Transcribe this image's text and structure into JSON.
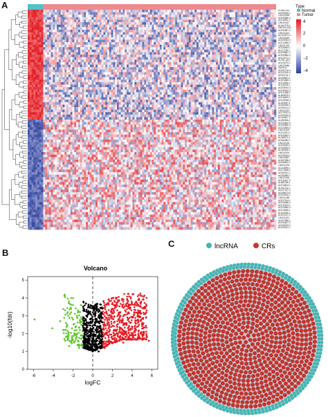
{
  "panels": {
    "a": "A",
    "b": "B",
    "c": "C"
  },
  "heatmap": {
    "type_title": "Type",
    "type_legend": [
      "Normal",
      "Tumor"
    ],
    "color_ticks": [
      "4",
      "2",
      "0",
      "−2",
      "−4"
    ],
    "colors": {
      "normal": "#4ec3c8",
      "tumor": "#ef8a8f",
      "high": "#e31b23",
      "mid": "#ffffff",
      "low": "#2c3e9e"
    },
    "gene_labels": [
      "RGMB-AS1",
      "AC005009.1",
      "LINC00958",
      "AC092580.4",
      "AC018511.1",
      "LINC00467",
      "AL161729.4",
      "ZNF503-AS2",
      "AC090587.2",
      "LINC01614",
      "AC104971.2",
      "LINC00462",
      "AC009053.3",
      "AC010969.2",
      "LINC01234",
      "AC026464.1",
      "AL117190.1",
      "AC008687.4",
      "AC099850.3",
      "AC015712.2",
      "ELFN1-AS1",
      "AC024075.1",
      "LINC02086",
      "SNHG12",
      "AC092718.4",
      "AC022150.4",
      "AP001011.1",
      "AC068631.1",
      "AC004846.1",
      "AC012640.1",
      "AL133245.1",
      "AC005034.3",
      "AC040162.3",
      "AC012368.1",
      "AL645929.1",
      "AC018529.1",
      "AC025048.4",
      "AL031667.3",
      "AC069360.1",
      "AC090114.2",
      "LINC01133",
      "AC079781.5",
      "AC005332.6",
      "AC116407.2",
      "AL450384.2",
      "AC010542.5",
      "AC099850.4",
      "AC023509.3",
      "LINC01503",
      "AC010201.1",
      "AC093642.1",
      "AL355574.1",
      "AC084082.1",
      "LINC02418",
      "AC009084.1",
      "AC005943.1",
      "AL049555.1",
      "LINC00324",
      "AC025164.1",
      "LINC00887",
      "AC087286.2",
      "AC008622.1",
      "LINC01004",
      "AC119396.1",
      "AC073548.1",
      "AC084761.1",
      "AC093890.1",
      "LINC02454",
      "AC011447.3",
      "AL583785.1",
      "AC015813.1",
      "AL031714.1",
      "AC027237.4",
      "AC068473.5",
      "AC020916.1",
      "LINC01088",
      "AC027514.1",
      "AC006486.2",
      "AC010913.1",
      "AC024560.3",
      "AC019069.1",
      "AL031056.1",
      "AC022137.2",
      "LINC01521",
      "AC007996.1",
      "AC092807.2",
      "AC008763.3",
      "AC093001.1"
    ]
  },
  "volcano": {
    "title": "Volcano",
    "xlabel": "logFC",
    "ylabel": "-log10(fdr)",
    "x_ticks": [
      "-6",
      "-4",
      "-2",
      "0",
      "2",
      "4",
      "6"
    ],
    "y_ticks": [
      "0",
      "1",
      "2",
      "3",
      "4",
      "5"
    ]
  },
  "network": {
    "legend": [
      "lncRNA",
      "CRs"
    ],
    "colors": {
      "lncrna": "#3fb7b4",
      "crs": "#d0342c"
    }
  },
  "chart_data": [
    {
      "type": "heatmap",
      "title": "",
      "legend": [
        "Normal",
        "Tumor"
      ],
      "color_scale": {
        "min": -4,
        "max": 4,
        "ticks": [
          4,
          2,
          0,
          -2,
          -4
        ]
      },
      "columns": {
        "normal": 8,
        "tumor": 120
      },
      "rows": 88
    },
    {
      "type": "scatter",
      "title": "Volcano",
      "xlabel": "logFC",
      "ylabel": "-log10(fdr)",
      "xlim": [
        -6.6,
        6.6
      ],
      "ylim": [
        0,
        5.2
      ],
      "thresholds": {
        "logFC": [
          -1,
          1
        ],
        "fdr_line_x": 0
      },
      "series": [
        {
          "color": "#5cc62b",
          "x": [
            -1.1,
            -1.2,
            -1.3,
            -1.5,
            -1.7,
            -2.0,
            -2.3,
            -2.6,
            -3.0,
            -2.2,
            -1.8,
            -1.4,
            -1.9,
            -2.5,
            -3.3,
            -1.6,
            -2.1,
            -2.8,
            -1.3,
            -1.5,
            -4.1,
            -5.9,
            -2.4,
            -1.7,
            -1.2
          ],
          "y": [
            1.4,
            1.9,
            2.2,
            1.6,
            2.4,
            2.8,
            3.1,
            2.5,
            2.2,
            3.4,
            2.0,
            1.2,
            1.5,
            1.8,
            2.7,
            3.0,
            2.3,
            1.6,
            2.6,
            3.3,
            2.3,
            2.8,
            1.3,
            1.7,
            3.6
          ]
        },
        {
          "color": "#000000",
          "x": [
            -0.9,
            -0.6,
            -0.4,
            -0.2,
            0.0,
            0.2,
            0.4,
            0.6,
            0.8,
            -0.5,
            0.3,
            -0.8,
            0.7,
            -0.3,
            0.5,
            -0.1,
            0.9,
            -0.7,
            0.1,
            0.6
          ],
          "y": [
            1.2,
            1.5,
            1.8,
            2.1,
            1.3,
            1.6,
            2.3,
            1.4,
            1.9,
            3.2,
            2.8,
            2.5,
            3.0,
            1.1,
            1.2,
            2.6,
            2.2,
            1.7,
            1.4,
            1.0
          ]
        },
        {
          "color": "#e31b23",
          "x": [
            1.1,
            1.3,
            1.5,
            1.8,
            2.0,
            2.3,
            2.6,
            3.0,
            3.4,
            3.8,
            4.2,
            4.6,
            5.1,
            5.7,
            1.6,
            2.1,
            2.8,
            3.5,
            4.0,
            1.2,
            1.9,
            2.4,
            3.1,
            4.4,
            5.4
          ],
          "y": [
            1.5,
            2.0,
            2.5,
            3.0,
            3.4,
            2.2,
            2.8,
            3.6,
            2.1,
            2.6,
            3.2,
            1.8,
            2.3,
            1.6,
            3.9,
            4.0,
            3.2,
            3.9,
            2.9,
            1.2,
            1.8,
            3.6,
            1.5,
            2.2,
            2.9
          ]
        }
      ]
    },
    {
      "type": "network",
      "title": "",
      "legend": [
        "lncRNA",
        "CRs"
      ]
    }
  ]
}
